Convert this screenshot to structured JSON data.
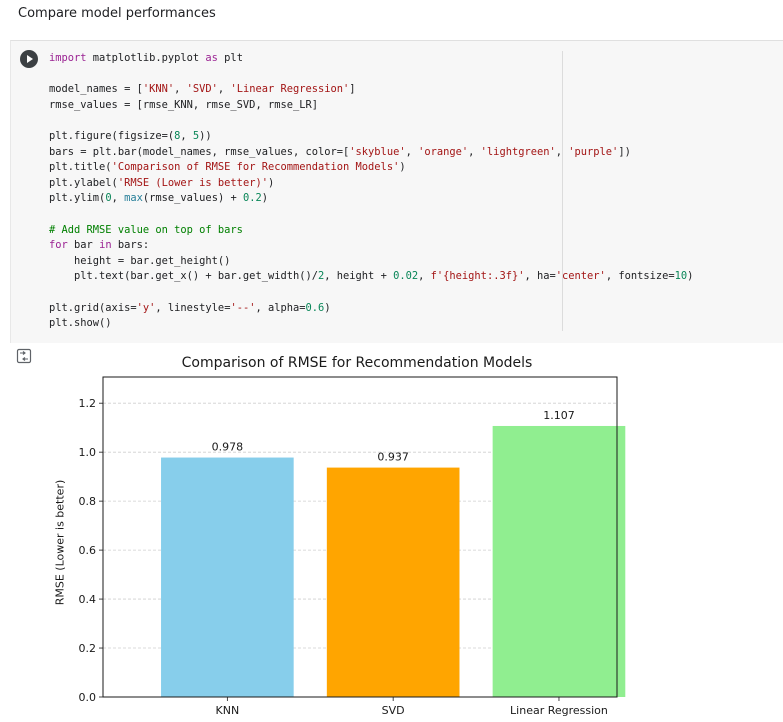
{
  "notebook": {
    "section_heading": "Compare model performances",
    "cell": {
      "code_lines": [
        [
          {
            "t": "import",
            "c": "kw"
          },
          {
            "t": " matplotlib.pyplot "
          },
          {
            "t": "as",
            "c": "kw"
          },
          {
            "t": " plt"
          }
        ],
        [],
        [
          {
            "t": "model_names = ["
          },
          {
            "t": "'KNN'",
            "c": "str"
          },
          {
            "t": ", "
          },
          {
            "t": "'SVD'",
            "c": "str"
          },
          {
            "t": ", "
          },
          {
            "t": "'Linear Regression'",
            "c": "str"
          },
          {
            "t": "]"
          }
        ],
        [
          {
            "t": "rmse_values = [rmse_KNN, rmse_SVD, rmse_LR]"
          }
        ],
        [],
        [
          {
            "t": "plt.figure(figsize=("
          },
          {
            "t": "8",
            "c": "num"
          },
          {
            "t": ", "
          },
          {
            "t": "5",
            "c": "num"
          },
          {
            "t": "))"
          }
        ],
        [
          {
            "t": "bars = plt.bar(model_names, rmse_values, color=["
          },
          {
            "t": "'skyblue'",
            "c": "str"
          },
          {
            "t": ", "
          },
          {
            "t": "'orange'",
            "c": "str"
          },
          {
            "t": ", "
          },
          {
            "t": "'lightgreen'",
            "c": "str"
          },
          {
            "t": ", "
          },
          {
            "t": "'purple'",
            "c": "str"
          },
          {
            "t": "])"
          }
        ],
        [
          {
            "t": "plt.title("
          },
          {
            "t": "'Comparison of RMSE for Recommendation Models'",
            "c": "str"
          },
          {
            "t": ")"
          }
        ],
        [
          {
            "t": "plt.ylabel("
          },
          {
            "t": "'RMSE (Lower is better)'",
            "c": "str"
          },
          {
            "t": ")"
          }
        ],
        [
          {
            "t": "plt.ylim("
          },
          {
            "t": "0",
            "c": "num"
          },
          {
            "t": ", "
          },
          {
            "t": "max",
            "c": "bi"
          },
          {
            "t": "(rmse_values) + "
          },
          {
            "t": "0.2",
            "c": "num"
          },
          {
            "t": ")"
          }
        ],
        [],
        [
          {
            "t": "# Add RMSE value on top of bars",
            "c": "cm"
          }
        ],
        [
          {
            "t": "for",
            "c": "kw"
          },
          {
            "t": " bar "
          },
          {
            "t": "in",
            "c": "kw"
          },
          {
            "t": " bars:"
          }
        ],
        [
          {
            "t": "    height = bar.get_height()"
          }
        ],
        [
          {
            "t": "    plt.text(bar.get_x() + bar.get_width()/"
          },
          {
            "t": "2",
            "c": "num"
          },
          {
            "t": ", height + "
          },
          {
            "t": "0.02",
            "c": "num"
          },
          {
            "t": ", "
          },
          {
            "t": "f'{height:.3f}'",
            "c": "str"
          },
          {
            "t": ", ha="
          },
          {
            "t": "'center'",
            "c": "str"
          },
          {
            "t": ", fontsize="
          },
          {
            "t": "10",
            "c": "num"
          },
          {
            "t": ")"
          }
        ],
        [],
        [
          {
            "t": "plt.grid(axis="
          },
          {
            "t": "'y'",
            "c": "str"
          },
          {
            "t": ", linestyle="
          },
          {
            "t": "'--'",
            "c": "str"
          },
          {
            "t": ", alpha="
          },
          {
            "t": "0.6",
            "c": "num"
          },
          {
            "t": ")"
          }
        ],
        [
          {
            "t": "plt.show()"
          }
        ]
      ]
    }
  },
  "chart_data": {
    "type": "bar",
    "title": "Comparison of RMSE for Recommendation Models",
    "xlabel": "",
    "ylabel": "RMSE (Lower is better)",
    "categories": [
      "KNN",
      "SVD",
      "Linear Regression"
    ],
    "values": [
      0.978,
      0.937,
      1.107
    ],
    "value_labels": [
      "0.978",
      "0.937",
      "1.107"
    ],
    "colors": [
      "#87ceeb",
      "#ffa500",
      "#90ee90"
    ],
    "ylim": [
      0,
      1.307
    ],
    "yticks": [
      0.0,
      0.2,
      0.4,
      0.6,
      0.8,
      1.0,
      1.2
    ],
    "ytick_labels": [
      "0.0",
      "0.2",
      "0.4",
      "0.6",
      "0.8",
      "1.0",
      "1.2"
    ],
    "grid": "y-dashed"
  }
}
